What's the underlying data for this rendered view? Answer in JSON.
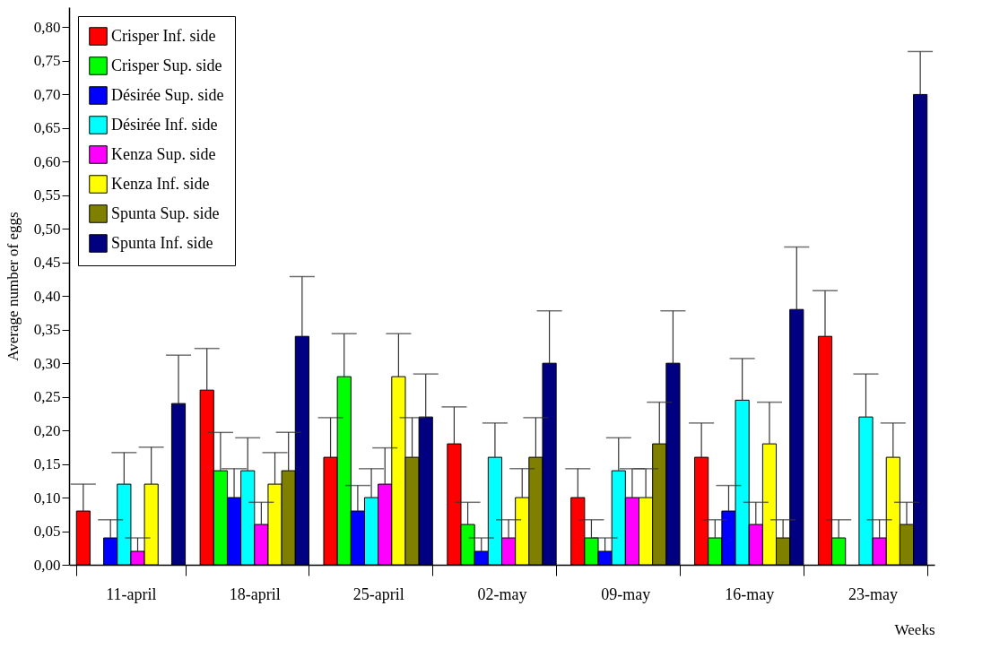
{
  "chart_data": {
    "type": "bar",
    "xlabel": "Weeks",
    "ylabel": "Average number of eggs",
    "categories": [
      "11-april",
      "18-april",
      "25-april",
      "02-may",
      "09-may",
      "16-may",
      "23-may"
    ],
    "ylim": [
      0,
      0.83
    ],
    "yticks": [
      {
        "value": 0,
        "label": "0,00"
      },
      {
        "value": 0.05,
        "label": "0,05"
      },
      {
        "value": 0.1,
        "label": "0,10"
      },
      {
        "value": 0.15,
        "label": "0,15"
      },
      {
        "value": 0.2,
        "label": "0,20"
      },
      {
        "value": 0.25,
        "label": "0,25"
      },
      {
        "value": 0.3,
        "label": "0,30"
      },
      {
        "value": 0.35,
        "label": "0,35"
      },
      {
        "value": 0.4,
        "label": "0,40"
      },
      {
        "value": 0.45,
        "label": "0,45"
      },
      {
        "value": 0.5,
        "label": "0,50"
      },
      {
        "value": 0.55,
        "label": "0,55"
      },
      {
        "value": 0.6,
        "label": "0,60"
      },
      {
        "value": 0.65,
        "label": "0,65"
      },
      {
        "value": 0.7,
        "label": "0,70"
      },
      {
        "value": 0.75,
        "label": "0,75"
      },
      {
        "value": 0.8,
        "label": "0,80"
      }
    ],
    "grid": false,
    "legend": "top left",
    "series": [
      {
        "name": "Crisper Inf. side",
        "color": "#ff0000",
        "values": [
          0.08,
          0.26,
          0.16,
          0.18,
          0.1,
          0.16,
          0.34
        ],
        "errors": [
          0.04,
          0.062,
          0.059,
          0.055,
          0.043,
          0.051,
          0.068
        ]
      },
      {
        "name": "Crisper Sup. side",
        "color": "#00ff00",
        "values": [
          0,
          0.14,
          0.28,
          0.06,
          0.04,
          0.04,
          0.04
        ],
        "errors": [
          null,
          0.057,
          0.064,
          0.033,
          0.027,
          0.027,
          0.027
        ]
      },
      {
        "name": "Désirée Sup. side",
        "color": "#0000ff",
        "values": [
          0.04,
          0.1,
          0.08,
          0.02,
          0.02,
          0.08,
          0
        ],
        "errors": [
          0.027,
          0.043,
          0.038,
          0.02,
          0.02,
          0.038,
          null
        ]
      },
      {
        "name": "Désirée Inf. side",
        "color": "#00ffff",
        "values": [
          0.12,
          0.14,
          0.1,
          0.16,
          0.14,
          0.245,
          0.22
        ],
        "errors": [
          0.047,
          0.049,
          0.043,
          0.051,
          0.049,
          0.062,
          0.064
        ]
      },
      {
        "name": "Kenza Sup. side",
        "color": "#ff00ff",
        "values": [
          0.02,
          0.06,
          0.12,
          0.04,
          0.1,
          0.06,
          0.04
        ],
        "errors": [
          0.02,
          0.033,
          0.054,
          0.027,
          0.043,
          0.033,
          0.027
        ]
      },
      {
        "name": "Kenza Inf. side",
        "color": "#ffff00",
        "values": [
          0.12,
          0.12,
          0.28,
          0.1,
          0.1,
          0.18,
          0.16
        ],
        "errors": [
          0.055,
          0.047,
          0.064,
          0.043,
          0.043,
          0.062,
          0.051
        ]
      },
      {
        "name": "Spunta Sup. side",
        "color": "#808000",
        "values": [
          0,
          0.14,
          0.16,
          0.16,
          0.18,
          0.04,
          0.06
        ],
        "errors": [
          null,
          0.057,
          0.059,
          0.059,
          0.062,
          0.027,
          0.033
        ]
      },
      {
        "name": "Spunta Inf. side",
        "color": "#000080",
        "values": [
          0.24,
          0.34,
          0.22,
          0.3,
          0.3,
          0.38,
          0.7
        ],
        "errors": [
          0.072,
          0.089,
          0.064,
          0.078,
          0.078,
          0.093,
          0.064
        ]
      }
    ]
  }
}
